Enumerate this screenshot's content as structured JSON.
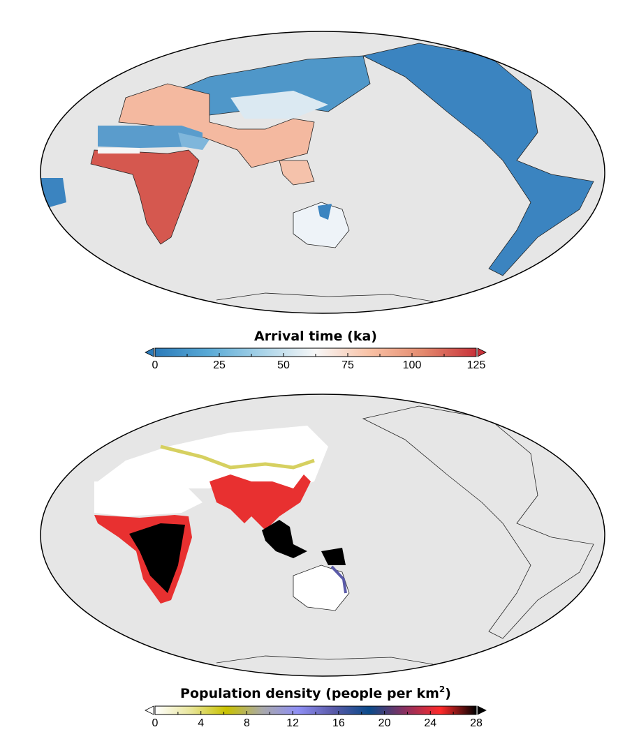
{
  "figure": {
    "map_top": {
      "projection": "Mollweide",
      "background_color": "#e6e6e6",
      "colorbar": {
        "title": "Arrival time  (ka)",
        "ticks": [
          "0",
          "25",
          "50",
          "75",
          "100",
          "125"
        ],
        "range": [
          0,
          125
        ],
        "colors": [
          "#2b7bba",
          "#5aaad6",
          "#a8d3e8",
          "#f7f7f7",
          "#f9c2a6",
          "#e48a6e",
          "#c8323a"
        ],
        "extend_low_color": "#2b7bba",
        "extend_high_color": "#c8323a"
      }
    },
    "map_bottom": {
      "projection": "Mollweide",
      "background_color": "#e6e6e6",
      "colorbar": {
        "title": "Population density (people per km",
        "title_superscript": "2",
        "title_close": ")",
        "ticks": [
          "0",
          "4",
          "8",
          "12",
          "16",
          "20",
          "24",
          "28"
        ],
        "range": [
          0,
          28
        ],
        "colors": [
          "#ffffff",
          "#e8e59a",
          "#c9c200",
          "#a9a9a9",
          "#8f8ff5",
          "#5a5aa8",
          "#0a4a8a",
          "#8a3060",
          "#ff2a2a",
          "#000000"
        ],
        "extend_low_color": "#ffffff",
        "extend_high_color": "#000000"
      }
    }
  }
}
